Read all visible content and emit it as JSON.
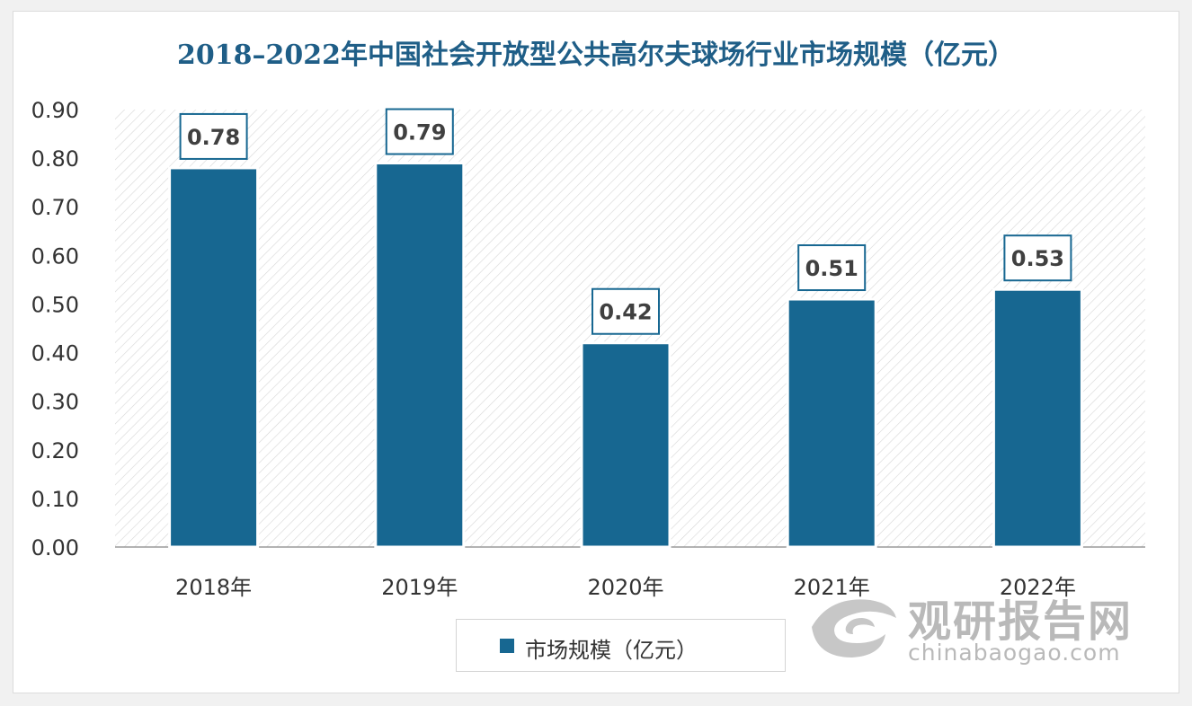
{
  "chart_data": {
    "type": "bar",
    "title": "2018–2022年中国社会开放型公共高尔夫球场行业市场规模（亿元）",
    "categories": [
      "2018年",
      "2019年",
      "2020年",
      "2021年",
      "2022年"
    ],
    "series": [
      {
        "name": "市场规模（亿元）",
        "values": [
          0.78,
          0.79,
          0.42,
          0.51,
          0.53
        ]
      }
    ],
    "data_labels": [
      "0.78",
      "0.79",
      "0.42",
      "0.51",
      "0.53"
    ],
    "y_ticks": [
      "0.00",
      "0.10",
      "0.20",
      "0.30",
      "0.40",
      "0.50",
      "0.60",
      "0.70",
      "0.80",
      "0.90"
    ],
    "ylim": [
      0,
      0.9
    ],
    "xlabel": "",
    "ylabel": "",
    "legend_position": "bottom",
    "grid": false,
    "colors": {
      "bar": "#176791",
      "title": "#1f5e87",
      "label_border": "#176791",
      "hatch": "#d6d6d6"
    }
  },
  "legend": {
    "label": "市场规模（亿元）"
  },
  "watermark": {
    "name_cn": "观研报告网",
    "url": "chinabaogao.com"
  }
}
